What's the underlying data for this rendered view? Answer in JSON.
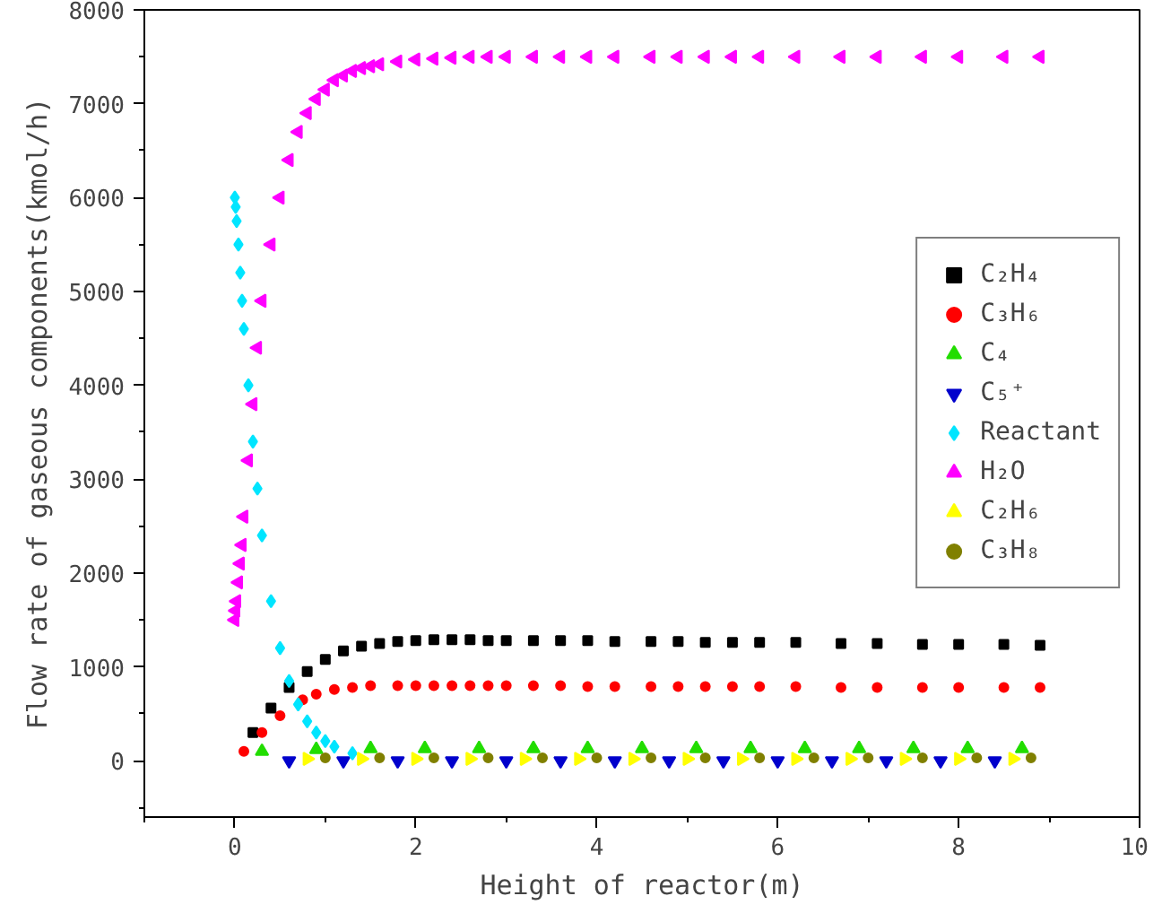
{
  "chart_data": {
    "type": "scatter",
    "xlabel": "Height of reactor(m)",
    "ylabel": "Flow rate of gaseous components(kmol/h)",
    "xlim": [
      -1,
      10
    ],
    "xticks": [
      0,
      2,
      4,
      6,
      8,
      10
    ],
    "ylim": [
      -600,
      8000
    ],
    "yticks": [
      0,
      1000,
      2000,
      3000,
      4000,
      5000,
      6000,
      7000,
      8000
    ],
    "grid": false,
    "legend": "right",
    "series": [
      {
        "name": "C₂H₄",
        "color": "#000000",
        "marker": "square",
        "x": [
          0.2,
          0.4,
          0.6,
          0.8,
          1.0,
          1.2,
          1.4,
          1.6,
          1.8,
          2.0,
          2.2,
          2.4,
          2.6,
          2.8,
          3.0,
          3.3,
          3.6,
          3.9,
          4.2,
          4.6,
          4.9,
          5.2,
          5.5,
          5.8,
          6.2,
          6.7,
          7.1,
          7.6,
          8.0,
          8.5,
          8.9
        ],
        "values": [
          300,
          560,
          780,
          950,
          1080,
          1170,
          1220,
          1250,
          1270,
          1280,
          1290,
          1290,
          1290,
          1280,
          1280,
          1280,
          1280,
          1280,
          1270,
          1270,
          1270,
          1260,
          1260,
          1260,
          1260,
          1250,
          1250,
          1240,
          1240,
          1240,
          1230
        ]
      },
      {
        "name": "C₃H₆",
        "color": "#ff0000",
        "marker": "circle",
        "x": [
          0.1,
          0.3,
          0.5,
          0.75,
          0.9,
          1.1,
          1.3,
          1.5,
          1.8,
          2.0,
          2.2,
          2.4,
          2.6,
          2.8,
          3.0,
          3.3,
          3.6,
          3.9,
          4.2,
          4.6,
          4.9,
          5.2,
          5.5,
          5.8,
          6.2,
          6.7,
          7.1,
          7.6,
          8.0,
          8.5,
          8.9
        ],
        "values": [
          100,
          300,
          480,
          650,
          710,
          760,
          780,
          800,
          800,
          800,
          800,
          800,
          800,
          800,
          800,
          800,
          800,
          790,
          790,
          790,
          790,
          790,
          790,
          790,
          790,
          780,
          780,
          780,
          780,
          780,
          780
        ]
      },
      {
        "name": "C₄",
        "color": "#22dd00",
        "marker": "triangle",
        "x": [
          0.3,
          0.9,
          1.5,
          2.1,
          2.7,
          3.3,
          3.9,
          4.5,
          5.1,
          5.7,
          6.3,
          6.9,
          7.5,
          8.1,
          8.7
        ],
        "values": [
          100,
          120,
          130,
          130,
          130,
          130,
          130,
          130,
          130,
          130,
          130,
          130,
          130,
          130,
          130
        ]
      },
      {
        "name": "C₅⁺",
        "color": "#0000cc",
        "marker": "triangle_down",
        "x": [
          0.6,
          1.2,
          1.8,
          2.4,
          3.0,
          3.6,
          4.2,
          4.8,
          5.4,
          6.0,
          6.6,
          7.2,
          7.8,
          8.4
        ],
        "values": [
          0,
          0,
          0,
          0,
          0,
          0,
          0,
          0,
          0,
          0,
          0,
          0,
          0,
          0
        ]
      },
      {
        "name": "Reactant",
        "color": "#00e5ff",
        "marker": "diamond",
        "x": [
          0,
          0.01,
          0.02,
          0.04,
          0.06,
          0.08,
          0.1,
          0.15,
          0.2,
          0.25,
          0.3,
          0.4,
          0.5,
          0.6,
          0.7,
          0.8,
          0.9,
          1.0,
          1.1,
          1.3
        ],
        "values": [
          6000,
          5900,
          5750,
          5500,
          5200,
          4900,
          4600,
          4000,
          3400,
          2900,
          2400,
          1700,
          1200,
          850,
          600,
          420,
          300,
          210,
          150,
          80
        ]
      },
      {
        "name": "H₂O",
        "color": "#ff00ff",
        "marker": "triangle_left",
        "x": [
          0,
          0.01,
          0.02,
          0.04,
          0.06,
          0.08,
          0.1,
          0.15,
          0.2,
          0.25,
          0.3,
          0.4,
          0.5,
          0.6,
          0.7,
          0.8,
          0.9,
          1.0,
          1.1,
          1.2,
          1.3,
          1.4,
          1.5,
          1.6,
          1.8,
          2.0,
          2.2,
          2.4,
          2.6,
          2.8,
          3.0,
          3.3,
          3.6,
          3.9,
          4.2,
          4.6,
          4.9,
          5.2,
          5.5,
          5.8,
          6.2,
          6.7,
          7.1,
          7.6,
          8.0,
          8.5,
          8.9
        ],
        "values": [
          1500,
          1600,
          1700,
          1900,
          2100,
          2300,
          2600,
          3200,
          3800,
          4400,
          4900,
          5500,
          6000,
          6400,
          6700,
          6900,
          7050,
          7150,
          7250,
          7300,
          7350,
          7380,
          7400,
          7420,
          7450,
          7470,
          7480,
          7490,
          7500,
          7500,
          7500,
          7500,
          7500,
          7500,
          7500,
          7500,
          7500,
          7500,
          7500,
          7500,
          7500,
          7500,
          7500,
          7500,
          7500,
          7500,
          7500
        ]
      },
      {
        "name": "C₂H₆",
        "color": "#ffff00",
        "marker": "triangle_right",
        "x": [
          0.8,
          1.4,
          2.0,
          2.6,
          3.2,
          3.8,
          4.4,
          5.0,
          5.6,
          6.2,
          6.8,
          7.4,
          8.0,
          8.6
        ],
        "values": [
          20,
          20,
          20,
          20,
          20,
          20,
          20,
          20,
          20,
          20,
          20,
          20,
          20,
          20
        ]
      },
      {
        "name": "C₃H₈",
        "color": "#808000",
        "marker": "circle",
        "x": [
          1.0,
          1.6,
          2.2,
          2.8,
          3.4,
          4.0,
          4.6,
          5.2,
          5.8,
          6.4,
          7.0,
          7.6,
          8.2,
          8.8
        ],
        "values": [
          30,
          30,
          30,
          30,
          30,
          30,
          30,
          30,
          30,
          30,
          30,
          30,
          30,
          30
        ]
      }
    ]
  }
}
